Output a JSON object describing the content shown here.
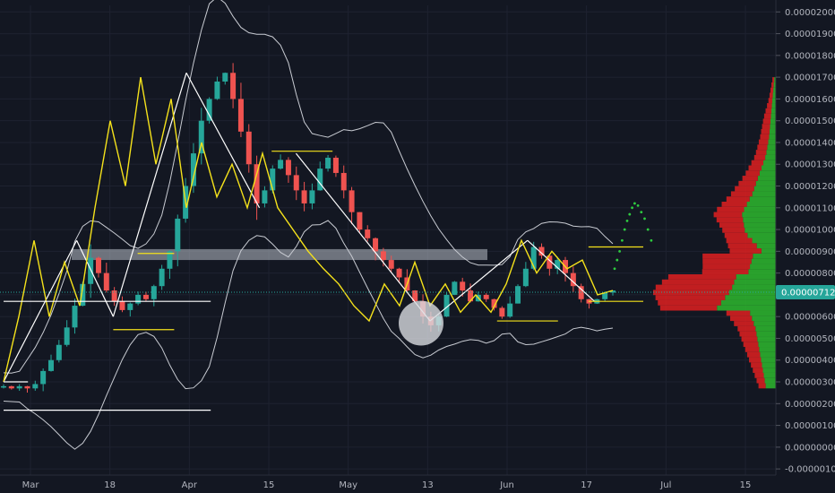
{
  "chart_data": {
    "type": "candlestick",
    "title": "",
    "xlabel": "",
    "ylabel": "",
    "x_ticks": [
      "Mar",
      "18",
      "Apr",
      "15",
      "May",
      "13",
      "Jun",
      "17",
      "Jul",
      "15"
    ],
    "y_ticks": [
      "0.00002000",
      "0.00001900",
      "0.00001800",
      "0.00001700",
      "0.00001600",
      "0.00001500",
      "0.00001400",
      "0.00001300",
      "0.00001200",
      "0.00001100",
      "0.00001000",
      "0.00000900",
      "0.00000800",
      "0.00000700",
      "0.00000600",
      "0.00000500",
      "0.00000400",
      "0.00000300",
      "0.00000200",
      "0.00000100",
      "0.00000000",
      "-0.00000100"
    ],
    "ylim": [
      -1.2e-06,
      2.03e-05
    ],
    "grid": true,
    "current_price": {
      "label": "0.00000712",
      "value": 7.12e-06,
      "color": "#26a69a"
    },
    "colors": {
      "background": "#131722",
      "up": "#26a69a",
      "down": "#ef5350",
      "zigzag": "#f5e21b",
      "bands": "#c8cbd2",
      "trend": "#ffffff",
      "zone": "#b9c0c8",
      "projection": "#2ecc40",
      "volume_up": "#2eb82e",
      "volume_down": "#e02020"
    },
    "price_path": [
      2.8e-06,
      2.7e-06,
      2.8e-06,
      2.7e-06,
      2.9e-06,
      3.5e-06,
      4e-06,
      4.7e-06,
      5.5e-06,
      6.5e-06,
      7.5e-06,
      8.7e-06,
      8e-06,
      7.2e-06,
      6.7e-06,
      6.3e-06,
      6.6e-06,
      7e-06,
      6.8e-06,
      7.4e-06,
      8.2e-06,
      9e-06,
      1.05e-05,
      1.2e-05,
      1.35e-05,
      1.5e-05,
      1.6e-05,
      1.68e-05,
      1.72e-05,
      1.6e-05,
      1.45e-05,
      1.3e-05,
      1.12e-05,
      1.18e-05,
      1.28e-05,
      1.32e-05,
      1.25e-05,
      1.18e-05,
      1.12e-05,
      1.18e-05,
      1.28e-05,
      1.33e-05,
      1.26e-05,
      1.18e-05,
      1.08e-05,
      1e-05,
      9.6e-06,
      9e-06,
      8.6e-06,
      8.2e-06,
      7.8e-06,
      7.2e-06,
      6.7e-06,
      6e-06,
      5.6e-06,
      6e-06,
      7e-06,
      7.6e-06,
      7.2e-06,
      6.7e-06,
      7e-06,
      6.8e-06,
      6.4e-06,
      6e-06,
      6.6e-06,
      7.4e-06,
      8.2e-06,
      9.2e-06,
      8.8e-06,
      8.2e-06,
      8.6e-06,
      8e-06,
      7.4e-06,
      6.8e-06,
      6.6e-06,
      6.8e-06,
      7.1e-06,
      7.2e-06
    ],
    "zigzag": [
      3e-06,
      6e-06,
      9.5e-06,
      6e-06,
      8.5e-06,
      6.5e-06,
      1.1e-05,
      1.5e-05,
      1.2e-05,
      1.7e-05,
      1.3e-05,
      1.6e-05,
      1.1e-05,
      1.4e-05,
      1.15e-05,
      1.3e-05,
      1.1e-05,
      1.35e-05,
      1.1e-05,
      1e-05,
      9e-06,
      8.2e-06,
      7.5e-06,
      6.5e-06,
      5.8e-06,
      7.5e-06,
      6.5e-06,
      8.5e-06,
      6.5e-06,
      7.5e-06,
      6.2e-06,
      7e-06,
      6.2e-06,
      7.5e-06,
      9.5e-06,
      8e-06,
      9e-06,
      8.2e-06,
      8.6e-06,
      7e-06,
      7.2e-06
    ],
    "projection_dots": [
      8.2e-06,
      8.6e-06,
      9e-06,
      9.5e-06,
      1e-05,
      1.04e-05,
      1.07e-05,
      1.1e-05,
      1.12e-05,
      1.11e-05,
      1.08e-05,
      1.05e-05,
      1e-05,
      9.5e-06
    ],
    "volume_profile": {
      "up_weights": [
        0.3,
        0.4,
        0.5,
        0.6,
        0.8,
        0.6,
        0.5,
        0.4,
        0.9,
        1.0,
        0.7,
        0.5,
        0.3,
        0.2,
        0.15,
        0.1,
        0.05
      ],
      "down_weights": [
        0.2,
        0.3,
        0.4,
        0.5,
        0.7,
        1.0,
        0.8,
        0.9,
        0.6,
        0.8,
        0.6,
        0.4,
        0.3,
        0.25,
        0.2,
        0.1,
        0.05
      ]
    }
  }
}
